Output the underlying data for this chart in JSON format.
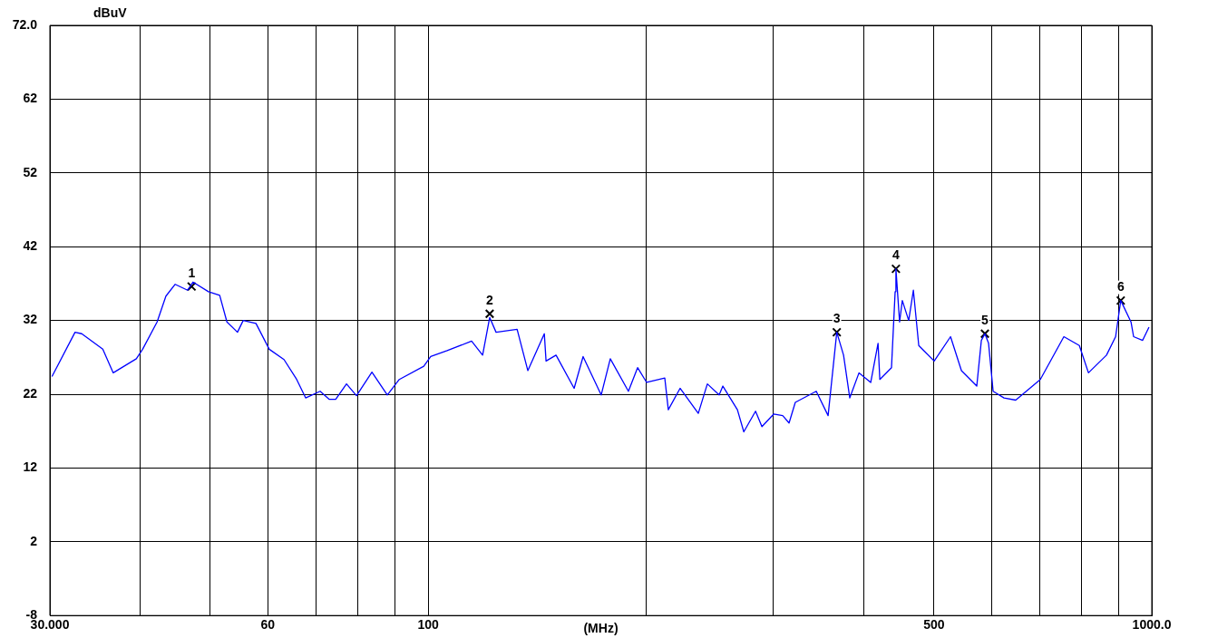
{
  "chart_data": {
    "type": "line",
    "xlabel": "(MHz)",
    "ylabel": "dBuV",
    "log": "x",
    "grid": true,
    "legend": false,
    "marker": "none",
    "xlim": [
      30,
      1000
    ],
    "ylim": [
      -8,
      72
    ],
    "xticks": [
      {
        "value": 30,
        "label": "30.000"
      },
      {
        "value": 40,
        "label": null
      },
      {
        "value": 50,
        "label": null
      },
      60,
      {
        "value": 70,
        "label": null
      },
      {
        "value": 80,
        "label": null
      },
      {
        "value": 90,
        "label": null
      },
      100,
      {
        "value": 200,
        "label": null
      },
      {
        "value": 300,
        "label": null
      },
      {
        "value": 400,
        "label": null
      },
      500,
      {
        "value": 600,
        "label": null
      },
      {
        "value": 700,
        "label": null
      },
      {
        "value": 800,
        "label": null
      },
      {
        "value": 900,
        "label": null
      },
      {
        "value": 1000,
        "label": "1000.0"
      }
    ],
    "yticks": [
      -8,
      2,
      12,
      22,
      32,
      42,
      52,
      62,
      {
        "value": 72,
        "label": "72.0"
      }
    ],
    "series": [
      {
        "color": "#0000ff",
        "x": [
          30.2,
          32.5,
          33.2,
          35.5,
          36.7,
          39.5,
          40.3,
          42.2,
          43.4,
          44.7,
          46.5,
          47.3,
          49.7,
          51.5,
          52.7,
          54.5,
          55.5,
          57.8,
          60.3,
          63.2,
          65.8,
          67.7,
          70.9,
          73.0,
          74.5,
          77.1,
          79.6,
          83.6,
          87.8,
          91.2,
          98.6,
          100.8,
          106.2,
          114.8,
          118.9,
          121.6,
          124.1,
          132.7,
          137.3,
          144.7,
          145.5,
          150.2,
          159.1,
          163.7,
          173.4,
          178.5,
          189.1,
          194.7,
          200.4,
          212.3,
          214.7,
          222.9,
          236.2,
          243.1,
          252.4,
          255.4,
          267.5,
          273.0,
          283.4,
          289.2,
          300.2,
          309.0,
          315.3,
          321.6,
          343.8,
          357.0,
          367.0,
          375.0,
          382.5,
          393.9,
          408.9,
          418.5,
          420.9,
          436.8,
          441.9,
          443.0,
          448.2,
          452.1,
          461.4,
          468.3,
          476.4,
          500.4,
          527.1,
          545.7,
          573.0,
          581.4,
          588.0,
          594.9,
          603.6,
          624.9,
          648.6,
          701.4,
          756.0,
          794.1,
          817.5,
          865.8,
          891.3,
          906.0,
          936.0,
          943.8,
          971.4,
          991.2
        ],
        "values": [
          24.4,
          30.4,
          30.2,
          28.1,
          24.9,
          26.8,
          28.1,
          31.8,
          35.3,
          36.9,
          36.1,
          37.2,
          35.9,
          35.4,
          31.8,
          30.4,
          32.0,
          31.6,
          28.1,
          26.7,
          24.0,
          21.5,
          22.4,
          21.3,
          21.3,
          23.4,
          21.8,
          25.0,
          21.9,
          24.0,
          25.8,
          27.1,
          27.9,
          29.2,
          27.3,
          32.4,
          30.4,
          30.8,
          25.2,
          30.2,
          26.5,
          27.3,
          22.8,
          27.1,
          21.9,
          26.8,
          22.4,
          25.6,
          23.6,
          24.2,
          19.9,
          22.8,
          19.4,
          23.4,
          21.9,
          23.1,
          19.9,
          16.9,
          19.7,
          17.6,
          19.3,
          19.1,
          18.1,
          20.9,
          22.4,
          19.1,
          30.4,
          27.3,
          21.5,
          24.9,
          23.6,
          28.9,
          24.0,
          25.6,
          35.9,
          39.0,
          31.8,
          34.7,
          32.0,
          36.1,
          28.6,
          26.5,
          29.8,
          25.2,
          23.1,
          29.3,
          30.2,
          28.9,
          22.4,
          21.5,
          21.2,
          24.0,
          29.8,
          28.6,
          24.9,
          27.3,
          29.8,
          34.7,
          31.8,
          29.8,
          29.3,
          31.1
        ]
      },
      {
        "type": "scatter",
        "color": "#000000",
        "marker": "cross",
        "x": [
          47.1,
          121.6,
          367.0,
          443.0,
          588.0,
          906.0
        ],
        "values": [
          36.6,
          32.9,
          30.4,
          39.0,
          30.2,
          34.7
        ]
      }
    ],
    "annotations": [
      {
        "text": "1",
        "x": 47.1,
        "y": 36.6
      },
      {
        "text": "2",
        "x": 121.6,
        "y": 32.9
      },
      {
        "text": "3",
        "x": 367.0,
        "y": 30.4
      },
      {
        "text": "4",
        "x": 443.0,
        "y": 39.0
      },
      {
        "text": "5",
        "x": 588.0,
        "y": 30.2
      },
      {
        "text": "6",
        "x": 906.0,
        "y": 34.7
      }
    ]
  }
}
